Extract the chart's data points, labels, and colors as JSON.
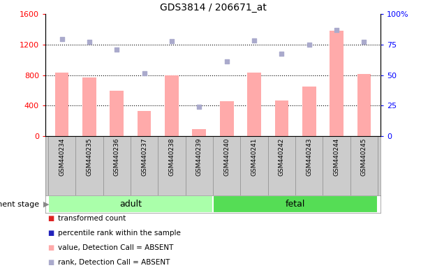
{
  "title": "GDS3814 / 206671_at",
  "samples": [
    "GSM440234",
    "GSM440235",
    "GSM440236",
    "GSM440237",
    "GSM440238",
    "GSM440239",
    "GSM440240",
    "GSM440241",
    "GSM440242",
    "GSM440243",
    "GSM440244",
    "GSM440245"
  ],
  "bar_values": [
    830,
    770,
    590,
    330,
    800,
    90,
    460,
    830,
    470,
    650,
    1380,
    810
  ],
  "bar_color_absent": "#ffaaaa",
  "scatter_values_left": [
    1270,
    1230,
    1130,
    820,
    1240,
    380,
    980,
    1250,
    1080,
    1200,
    1390,
    1230
  ],
  "scatter_color_absent": "#aaaacc",
  "ylim_left": [
    0,
    1600
  ],
  "ylim_right": [
    0,
    100
  ],
  "yticks_left": [
    0,
    400,
    800,
    1200,
    1600
  ],
  "ytick_labels_left": [
    "0",
    "400",
    "800",
    "1200",
    "1600"
  ],
  "yticks_right": [
    0,
    25,
    50,
    75,
    100
  ],
  "ytick_labels_right": [
    "0",
    "25",
    "50",
    "75",
    "100%"
  ],
  "dotted_yticks": [
    400,
    800,
    1200
  ],
  "groups": [
    {
      "label": "adult",
      "start": 0,
      "end": 5,
      "color": "#aaffaa"
    },
    {
      "label": "fetal",
      "start": 6,
      "end": 11,
      "color": "#55dd55"
    }
  ],
  "group_label": "development stage",
  "legend_items": [
    {
      "label": "transformed count",
      "color": "#dd2222"
    },
    {
      "label": "percentile rank within the sample",
      "color": "#2222bb"
    },
    {
      "label": "value, Detection Call = ABSENT",
      "color": "#ffaaaa"
    },
    {
      "label": "rank, Detection Call = ABSENT",
      "color": "#aaaacc"
    }
  ],
  "bar_width": 0.5
}
